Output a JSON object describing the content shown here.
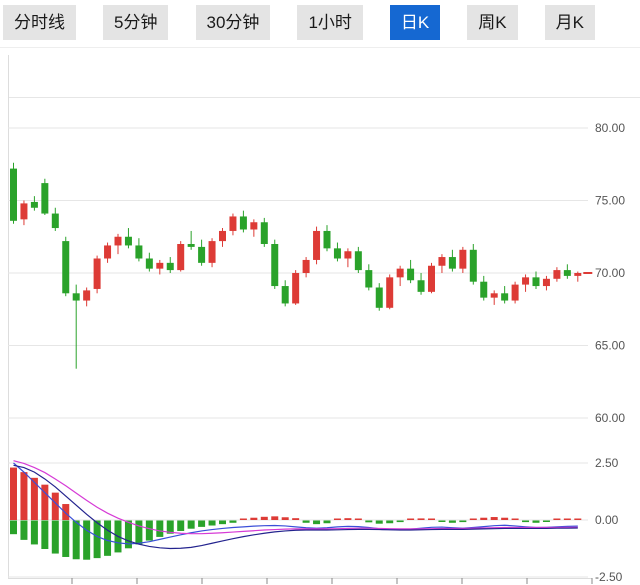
{
  "toolbar": {
    "active_bg": "#1568d2",
    "active_fg": "#ffffff",
    "inactive_bg": "#e4e4e4",
    "inactive_fg": "#1a1a1a",
    "tabs": [
      {
        "name": "tab-timeline",
        "label": "分时线",
        "active": false
      },
      {
        "name": "tab-5min",
        "label": "5分钟",
        "active": false
      },
      {
        "name": "tab-30min",
        "label": "30分钟",
        "active": false
      },
      {
        "name": "tab-1hour",
        "label": "1小时",
        "active": false
      },
      {
        "name": "tab-daily-k",
        "label": "日K",
        "active": true
      },
      {
        "name": "tab-weekly-k",
        "label": "周K",
        "active": false
      },
      {
        "name": "tab-monthly-k",
        "label": "月K",
        "active": false
      }
    ]
  },
  "chart_data": {
    "type": "candlestick",
    "title": "",
    "grid": true,
    "legend_position": "none",
    "x_tick_count": 9,
    "colors": {
      "up": "#dd3b36",
      "down": "#2aa22a",
      "grid": "#e6e6e6",
      "axis_line": "#dddddd",
      "tick": "#888888",
      "axis_label": "#555555"
    },
    "panels": [
      {
        "name": "price",
        "ylim": [
          58.5,
          85.0
        ],
        "yticks": [
          80,
          75,
          70,
          65,
          60
        ],
        "ytick_labels": [
          "80.00",
          "75.00",
          "70.00",
          "65.00",
          "60.00"
        ],
        "candles": [
          [
            77.2,
            77.6,
            73.4,
            73.6
          ],
          [
            73.7,
            75.0,
            73.3,
            74.8
          ],
          [
            74.9,
            75.3,
            74.3,
            74.5
          ],
          [
            76.2,
            76.5,
            74.0,
            74.1
          ],
          [
            74.1,
            74.5,
            72.9,
            73.1
          ],
          [
            72.2,
            72.5,
            68.4,
            68.6
          ],
          [
            68.6,
            69.2,
            63.4,
            68.1
          ],
          [
            68.1,
            69.0,
            67.7,
            68.8
          ],
          [
            68.9,
            71.2,
            68.6,
            71.0
          ],
          [
            71.0,
            72.1,
            70.7,
            71.9
          ],
          [
            71.9,
            72.7,
            71.3,
            72.5
          ],
          [
            72.5,
            73.1,
            71.7,
            71.9
          ],
          [
            71.9,
            72.4,
            70.8,
            71.0
          ],
          [
            71.0,
            71.4,
            70.1,
            70.3
          ],
          [
            70.3,
            70.9,
            69.9,
            70.7
          ],
          [
            70.7,
            71.1,
            70.0,
            70.2
          ],
          [
            70.2,
            72.2,
            70.1,
            72.0
          ],
          [
            72.0,
            72.9,
            71.6,
            71.8
          ],
          [
            71.8,
            72.3,
            70.5,
            70.7
          ],
          [
            70.7,
            72.4,
            70.4,
            72.2
          ],
          [
            72.2,
            73.1,
            71.8,
            72.9
          ],
          [
            72.9,
            74.1,
            72.6,
            73.9
          ],
          [
            73.9,
            74.3,
            72.8,
            73.0
          ],
          [
            73.0,
            73.7,
            72.5,
            73.5
          ],
          [
            73.5,
            73.8,
            71.8,
            72.0
          ],
          [
            72.0,
            72.3,
            68.9,
            69.1
          ],
          [
            69.1,
            69.5,
            67.7,
            67.9
          ],
          [
            67.9,
            70.2,
            67.8,
            70.0
          ],
          [
            70.0,
            71.1,
            69.7,
            70.9
          ],
          [
            70.9,
            73.2,
            70.6,
            72.9
          ],
          [
            72.9,
            73.3,
            71.5,
            71.7
          ],
          [
            71.7,
            72.1,
            70.8,
            71.0
          ],
          [
            71.0,
            71.7,
            70.4,
            71.5
          ],
          [
            71.5,
            71.8,
            70.0,
            70.2
          ],
          [
            70.2,
            70.6,
            68.8,
            69.0
          ],
          [
            69.0,
            69.3,
            67.4,
            67.6
          ],
          [
            67.6,
            69.9,
            67.5,
            69.7
          ],
          [
            69.7,
            70.5,
            69.1,
            70.3
          ],
          [
            70.3,
            70.9,
            69.3,
            69.5
          ],
          [
            69.5,
            70.0,
            68.5,
            68.7
          ],
          [
            68.7,
            70.7,
            68.6,
            70.5
          ],
          [
            70.5,
            71.3,
            70.0,
            71.1
          ],
          [
            71.1,
            71.6,
            70.1,
            70.3
          ],
          [
            70.3,
            71.8,
            70.0,
            71.6
          ],
          [
            71.6,
            72.0,
            69.2,
            69.4
          ],
          [
            69.4,
            69.8,
            68.1,
            68.3
          ],
          [
            68.3,
            68.8,
            67.8,
            68.6
          ],
          [
            68.6,
            69.1,
            67.9,
            68.1
          ],
          [
            68.1,
            69.4,
            67.9,
            69.2
          ],
          [
            69.2,
            69.9,
            68.7,
            69.7
          ],
          [
            69.7,
            70.1,
            68.9,
            69.1
          ],
          [
            69.1,
            69.8,
            68.8,
            69.6
          ],
          [
            69.6,
            70.4,
            69.4,
            70.2
          ],
          [
            70.2,
            70.6,
            69.6,
            69.8
          ],
          [
            69.8,
            70.1,
            69.4,
            70.0
          ]
        ]
      },
      {
        "name": "macd",
        "ylim": [
          -2.85,
          2.85
        ],
        "yticks": [
          2.5,
          0,
          -2.5
        ],
        "ytick_labels": [
          "2.50",
          "0.00",
          "-2.50"
        ],
        "hist_pos": [
          2.3,
          2.1,
          1.85,
          1.55,
          1.2,
          0.7,
          0,
          0,
          0,
          0,
          0,
          0,
          0,
          0,
          0,
          0,
          0,
          0,
          0,
          0,
          0,
          0,
          0.06,
          0.1,
          0.14,
          0.16,
          0.12,
          0.08,
          0,
          0,
          0,
          0.06,
          0.08,
          0.05,
          0,
          0,
          0,
          0,
          0.05,
          0.07,
          0.05,
          0,
          0,
          0,
          0.06,
          0.1,
          0.13,
          0.1,
          0.06,
          0,
          0,
          0,
          0.04,
          0.06,
          0.05
        ],
        "hist_neg": [
          -0.6,
          -0.85,
          -1.05,
          -1.25,
          -1.45,
          -1.6,
          -1.7,
          -1.72,
          -1.65,
          -1.55,
          -1.4,
          -1.22,
          -1.05,
          -0.88,
          -0.72,
          -0.58,
          -0.46,
          -0.36,
          -0.28,
          -0.22,
          -0.16,
          -0.1,
          0,
          0,
          0,
          0,
          0,
          0,
          -0.1,
          -0.16,
          -0.12,
          0,
          0,
          0,
          -0.08,
          -0.14,
          -0.12,
          -0.07,
          0,
          0,
          0,
          -0.06,
          -0.1,
          -0.07,
          0,
          0,
          0,
          0,
          0,
          -0.07,
          -0.1,
          -0.06,
          0,
          0,
          0
        ],
        "lines": [
          {
            "name": "DIF",
            "color": "#3a4fd8",
            "values": [
              2.5,
              2.1,
              1.65,
              1.2,
              0.75,
              0.3,
              -0.1,
              -0.45,
              -0.72,
              -0.9,
              -1.0,
              -1.05,
              -1.02,
              -0.95,
              -0.85,
              -0.75,
              -0.65,
              -0.56,
              -0.48,
              -0.42,
              -0.37,
              -0.33,
              -0.3,
              -0.27,
              -0.25,
              -0.24,
              -0.26,
              -0.3,
              -0.34,
              -0.36,
              -0.34,
              -0.3,
              -0.28,
              -0.29,
              -0.33,
              -0.38,
              -0.42,
              -0.43,
              -0.4,
              -0.36,
              -0.32,
              -0.31,
              -0.34,
              -0.36,
              -0.33,
              -0.29,
              -0.25,
              -0.23,
              -0.26,
              -0.3,
              -0.33,
              -0.32,
              -0.3,
              -0.28,
              -0.27
            ]
          },
          {
            "name": "DEA",
            "color": "#d63bd6",
            "values": [
              2.6,
              2.48,
              2.3,
              2.08,
              1.8,
              1.5,
              1.18,
              0.86,
              0.56,
              0.3,
              0.08,
              -0.1,
              -0.26,
              -0.38,
              -0.48,
              -0.54,
              -0.58,
              -0.6,
              -0.6,
              -0.58,
              -0.56,
              -0.53,
              -0.5,
              -0.47,
              -0.44,
              -0.42,
              -0.4,
              -0.39,
              -0.39,
              -0.39,
              -0.39,
              -0.38,
              -0.37,
              -0.36,
              -0.36,
              -0.37,
              -0.38,
              -0.39,
              -0.39,
              -0.39,
              -0.38,
              -0.37,
              -0.37,
              -0.37,
              -0.36,
              -0.35,
              -0.34,
              -0.33,
              -0.33,
              -0.33,
              -0.33,
              -0.33,
              -0.33,
              -0.32,
              -0.32
            ]
          },
          {
            "name": "MACD-MA",
            "color": "#23238e",
            "values": [
              2.4,
              2.3,
              2.1,
              1.8,
              1.45,
              1.05,
              0.65,
              0.25,
              -0.12,
              -0.45,
              -0.72,
              -0.92,
              -1.06,
              -1.16,
              -1.22,
              -1.25,
              -1.24,
              -1.2,
              -1.12,
              -1.02,
              -0.92,
              -0.82,
              -0.73,
              -0.65,
              -0.58,
              -0.52,
              -0.48,
              -0.45,
              -0.44,
              -0.44,
              -0.44,
              -0.43,
              -0.42,
              -0.41,
              -0.41,
              -0.42,
              -0.43,
              -0.44,
              -0.44,
              -0.43,
              -0.42,
              -0.41,
              -0.41,
              -0.41,
              -0.4,
              -0.39,
              -0.38,
              -0.37,
              -0.37,
              -0.37,
              -0.37,
              -0.37,
              -0.36,
              -0.36,
              -0.35
            ]
          }
        ]
      }
    ]
  }
}
